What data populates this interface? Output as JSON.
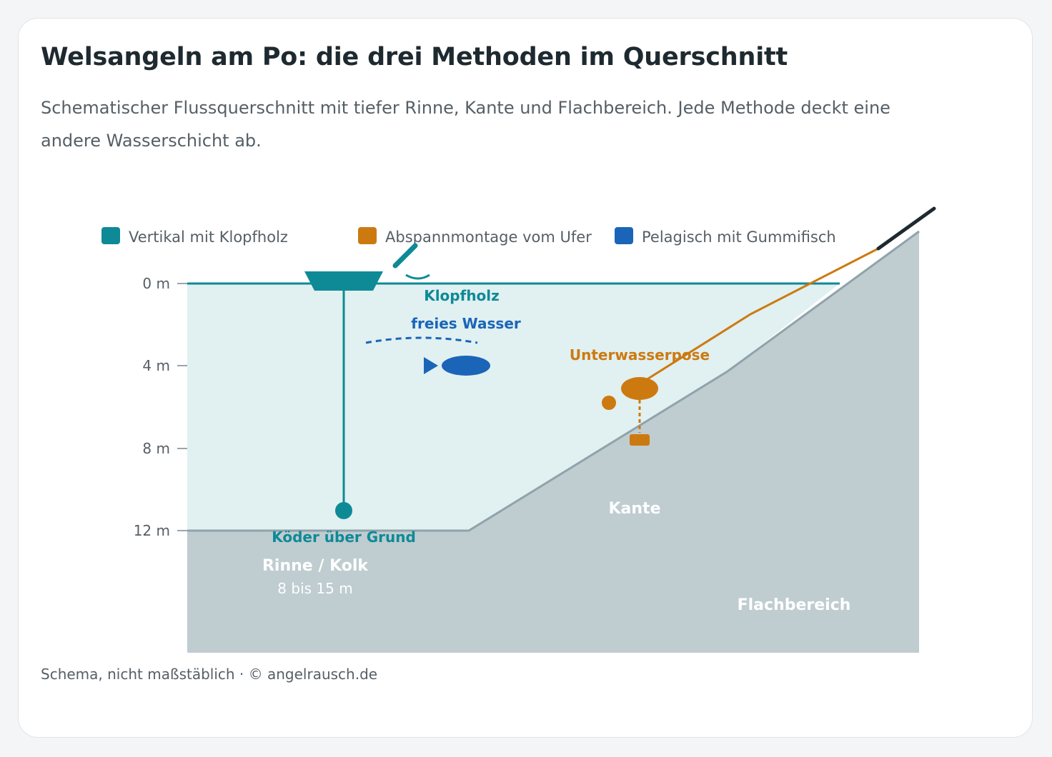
{
  "title": "Welsangeln am Po: die drei Methoden im Querschnitt",
  "subtitle": "Schematischer Flussquerschnitt mit tiefer Rinne, Kante und Flachbereich. Jede Methode deckt eine andere Wasserschicht ab.",
  "legend": [
    {
      "label": "Vertikal mit Klopfholz",
      "color": "#0e8a96"
    },
    {
      "label": "Abspannmontage vom Ufer",
      "color": "#cc7a10"
    },
    {
      "label": "Pelagisch mit Gummifisch",
      "color": "#1a65b8"
    }
  ],
  "depth_axis": {
    "ticks": [
      "0 m",
      "4 m",
      "8 m",
      "12 m"
    ]
  },
  "labels": {
    "klopfholz": "Klopfholz",
    "freies_wasser": "freies Wasser",
    "unterwasserpose": "Unterwasserpose",
    "koeder": "Köder über Grund",
    "rinne": "Rinne / Kolk",
    "rinne_depth": "8 bis 15 m",
    "kante": "Kante",
    "flachbereich": "Flachbereich"
  },
  "colors": {
    "water": "#e1f0f1",
    "riverbed": "#bfccd0",
    "riverbed_edge": "#8fa3aa",
    "surface": "#0e8a96"
  },
  "footer": "Schema, nicht maßstäblich · © angelrausch.de"
}
